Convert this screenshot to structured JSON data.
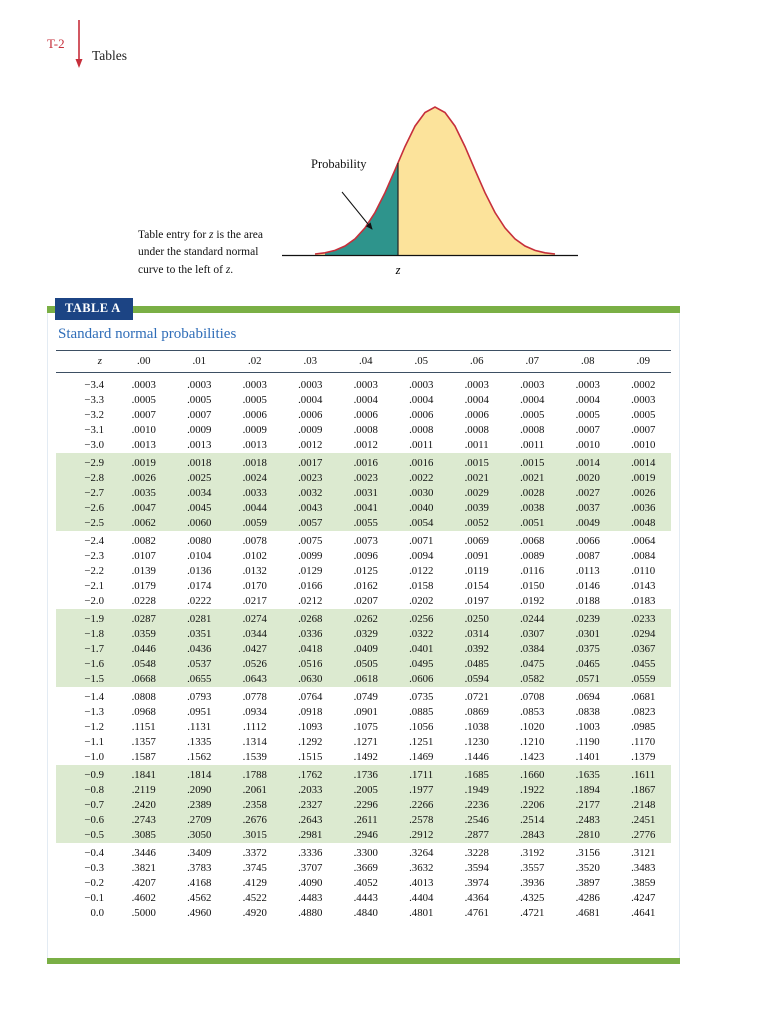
{
  "page": {
    "page_label": "T-2",
    "section_label": "Tables"
  },
  "figure": {
    "probability_label": "Probability",
    "z_axis_label": "z",
    "caption": {
      "part1": "Table entry for ",
      "z1": "z",
      "part2": " is the area under the standard normal curve to the left of ",
      "z2": "z",
      "part3": "."
    },
    "colors": {
      "curve_stroke": "#c62f3b",
      "area_right_fill": "#fce39b",
      "area_left_fill": "#2e948c"
    }
  },
  "table": {
    "bar_label": "TABLE A",
    "title": "Standard normal probabilities",
    "z_header": "z",
    "column_headers": [
      ".00",
      ".01",
      ".02",
      ".03",
      ".04",
      ".05",
      ".06",
      ".07",
      ".08",
      ".09"
    ],
    "colors": {
      "band_green": "#7aaf45",
      "label_navy": "#1c4484",
      "title_blue": "#2f6db8",
      "row_shade_green": "#dcead0",
      "accent_red": "#c62f3b"
    },
    "rows": [
      {
        "z": "−3.4",
        "values": [
          ".0003",
          ".0003",
          ".0003",
          ".0003",
          ".0003",
          ".0003",
          ".0003",
          ".0003",
          ".0003",
          ".0002"
        ]
      },
      {
        "z": "−3.3",
        "values": [
          ".0005",
          ".0005",
          ".0005",
          ".0004",
          ".0004",
          ".0004",
          ".0004",
          ".0004",
          ".0004",
          ".0003"
        ]
      },
      {
        "z": "−3.2",
        "values": [
          ".0007",
          ".0007",
          ".0006",
          ".0006",
          ".0006",
          ".0006",
          ".0006",
          ".0005",
          ".0005",
          ".0005"
        ]
      },
      {
        "z": "−3.1",
        "values": [
          ".0010",
          ".0009",
          ".0009",
          ".0009",
          ".0008",
          ".0008",
          ".0008",
          ".0008",
          ".0007",
          ".0007"
        ]
      },
      {
        "z": "−3.0",
        "values": [
          ".0013",
          ".0013",
          ".0013",
          ".0012",
          ".0012",
          ".0011",
          ".0011",
          ".0011",
          ".0010",
          ".0010"
        ]
      },
      {
        "z": "−2.9",
        "values": [
          ".0019",
          ".0018",
          ".0018",
          ".0017",
          ".0016",
          ".0016",
          ".0015",
          ".0015",
          ".0014",
          ".0014"
        ]
      },
      {
        "z": "−2.8",
        "values": [
          ".0026",
          ".0025",
          ".0024",
          ".0023",
          ".0023",
          ".0022",
          ".0021",
          ".0021",
          ".0020",
          ".0019"
        ]
      },
      {
        "z": "−2.7",
        "values": [
          ".0035",
          ".0034",
          ".0033",
          ".0032",
          ".0031",
          ".0030",
          ".0029",
          ".0028",
          ".0027",
          ".0026"
        ]
      },
      {
        "z": "−2.6",
        "values": [
          ".0047",
          ".0045",
          ".0044",
          ".0043",
          ".0041",
          ".0040",
          ".0039",
          ".0038",
          ".0037",
          ".0036"
        ]
      },
      {
        "z": "−2.5",
        "values": [
          ".0062",
          ".0060",
          ".0059",
          ".0057",
          ".0055",
          ".0054",
          ".0052",
          ".0051",
          ".0049",
          ".0048"
        ]
      },
      {
        "z": "−2.4",
        "values": [
          ".0082",
          ".0080",
          ".0078",
          ".0075",
          ".0073",
          ".0071",
          ".0069",
          ".0068",
          ".0066",
          ".0064"
        ]
      },
      {
        "z": "−2.3",
        "values": [
          ".0107",
          ".0104",
          ".0102",
          ".0099",
          ".0096",
          ".0094",
          ".0091",
          ".0089",
          ".0087",
          ".0084"
        ]
      },
      {
        "z": "−2.2",
        "values": [
          ".0139",
          ".0136",
          ".0132",
          ".0129",
          ".0125",
          ".0122",
          ".0119",
          ".0116",
          ".0113",
          ".0110"
        ]
      },
      {
        "z": "−2.1",
        "values": [
          ".0179",
          ".0174",
          ".0170",
          ".0166",
          ".0162",
          ".0158",
          ".0154",
          ".0150",
          ".0146",
          ".0143"
        ]
      },
      {
        "z": "−2.0",
        "values": [
          ".0228",
          ".0222",
          ".0217",
          ".0212",
          ".0207",
          ".0202",
          ".0197",
          ".0192",
          ".0188",
          ".0183"
        ]
      },
      {
        "z": "−1.9",
        "values": [
          ".0287",
          ".0281",
          ".0274",
          ".0268",
          ".0262",
          ".0256",
          ".0250",
          ".0244",
          ".0239",
          ".0233"
        ]
      },
      {
        "z": "−1.8",
        "values": [
          ".0359",
          ".0351",
          ".0344",
          ".0336",
          ".0329",
          ".0322",
          ".0314",
          ".0307",
          ".0301",
          ".0294"
        ]
      },
      {
        "z": "−1.7",
        "values": [
          ".0446",
          ".0436",
          ".0427",
          ".0418",
          ".0409",
          ".0401",
          ".0392",
          ".0384",
          ".0375",
          ".0367"
        ]
      },
      {
        "z": "−1.6",
        "values": [
          ".0548",
          ".0537",
          ".0526",
          ".0516",
          ".0505",
          ".0495",
          ".0485",
          ".0475",
          ".0465",
          ".0455"
        ]
      },
      {
        "z": "−1.5",
        "values": [
          ".0668",
          ".0655",
          ".0643",
          ".0630",
          ".0618",
          ".0606",
          ".0594",
          ".0582",
          ".0571",
          ".0559"
        ]
      },
      {
        "z": "−1.4",
        "values": [
          ".0808",
          ".0793",
          ".0778",
          ".0764",
          ".0749",
          ".0735",
          ".0721",
          ".0708",
          ".0694",
          ".0681"
        ]
      },
      {
        "z": "−1.3",
        "values": [
          ".0968",
          ".0951",
          ".0934",
          ".0918",
          ".0901",
          ".0885",
          ".0869",
          ".0853",
          ".0838",
          ".0823"
        ]
      },
      {
        "z": "−1.2",
        "values": [
          ".1151",
          ".1131",
          ".1112",
          ".1093",
          ".1075",
          ".1056",
          ".1038",
          ".1020",
          ".1003",
          ".0985"
        ]
      },
      {
        "z": "−1.1",
        "values": [
          ".1357",
          ".1335",
          ".1314",
          ".1292",
          ".1271",
          ".1251",
          ".1230",
          ".1210",
          ".1190",
          ".1170"
        ]
      },
      {
        "z": "−1.0",
        "values": [
          ".1587",
          ".1562",
          ".1539",
          ".1515",
          ".1492",
          ".1469",
          ".1446",
          ".1423",
          ".1401",
          ".1379"
        ]
      },
      {
        "z": "−0.9",
        "values": [
          ".1841",
          ".1814",
          ".1788",
          ".1762",
          ".1736",
          ".1711",
          ".1685",
          ".1660",
          ".1635",
          ".1611"
        ]
      },
      {
        "z": "−0.8",
        "values": [
          ".2119",
          ".2090",
          ".2061",
          ".2033",
          ".2005",
          ".1977",
          ".1949",
          ".1922",
          ".1894",
          ".1867"
        ]
      },
      {
        "z": "−0.7",
        "values": [
          ".2420",
          ".2389",
          ".2358",
          ".2327",
          ".2296",
          ".2266",
          ".2236",
          ".2206",
          ".2177",
          ".2148"
        ]
      },
      {
        "z": "−0.6",
        "values": [
          ".2743",
          ".2709",
          ".2676",
          ".2643",
          ".2611",
          ".2578",
          ".2546",
          ".2514",
          ".2483",
          ".2451"
        ]
      },
      {
        "z": "−0.5",
        "values": [
          ".3085",
          ".3050",
          ".3015",
          ".2981",
          ".2946",
          ".2912",
          ".2877",
          ".2843",
          ".2810",
          ".2776"
        ]
      },
      {
        "z": "−0.4",
        "values": [
          ".3446",
          ".3409",
          ".3372",
          ".3336",
          ".3300",
          ".3264",
          ".3228",
          ".3192",
          ".3156",
          ".3121"
        ]
      },
      {
        "z": "−0.3",
        "values": [
          ".3821",
          ".3783",
          ".3745",
          ".3707",
          ".3669",
          ".3632",
          ".3594",
          ".3557",
          ".3520",
          ".3483"
        ]
      },
      {
        "z": "−0.2",
        "values": [
          ".4207",
          ".4168",
          ".4129",
          ".4090",
          ".4052",
          ".4013",
          ".3974",
          ".3936",
          ".3897",
          ".3859"
        ]
      },
      {
        "z": "−0.1",
        "values": [
          ".4602",
          ".4562",
          ".4522",
          ".4483",
          ".4443",
          ".4404",
          ".4364",
          ".4325",
          ".4286",
          ".4247"
        ]
      },
      {
        "z": "0.0",
        "values": [
          ".5000",
          ".4960",
          ".4920",
          ".4880",
          ".4840",
          ".4801",
          ".4761",
          ".4721",
          ".4681",
          ".4641"
        ]
      }
    ]
  }
}
